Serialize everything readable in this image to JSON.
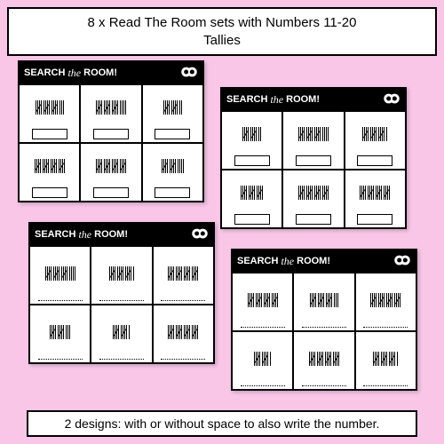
{
  "title": {
    "line1": "8 x Read The Room sets with Numbers 11-20",
    "line2": "Tallies"
  },
  "footer": "2 designs: with or without space to also write the number.",
  "worksheet_header": {
    "word1": "SEARCH",
    "word2": "the",
    "word3": "ROOM!"
  },
  "worksheets": [
    {
      "pos": "ws1",
      "type": "box",
      "tallies": [
        18,
        19,
        12,
        20,
        20,
        14
      ]
    },
    {
      "pos": "ws2",
      "type": "box",
      "tallies": [
        12,
        19,
        16,
        15,
        20,
        20
      ]
    },
    {
      "pos": "ws3",
      "type": "line",
      "tallies": [
        19,
        16,
        20,
        13,
        11,
        20
      ]
    },
    {
      "pos": "ws4",
      "type": "line",
      "tallies": [
        20,
        18,
        20,
        11,
        20,
        16
      ]
    }
  ],
  "colors": {
    "background": "#f9c6e8",
    "worksheet_bg": "#ffffff",
    "header_bg": "#000000",
    "header_text": "#ffffff",
    "border": "#000000"
  }
}
